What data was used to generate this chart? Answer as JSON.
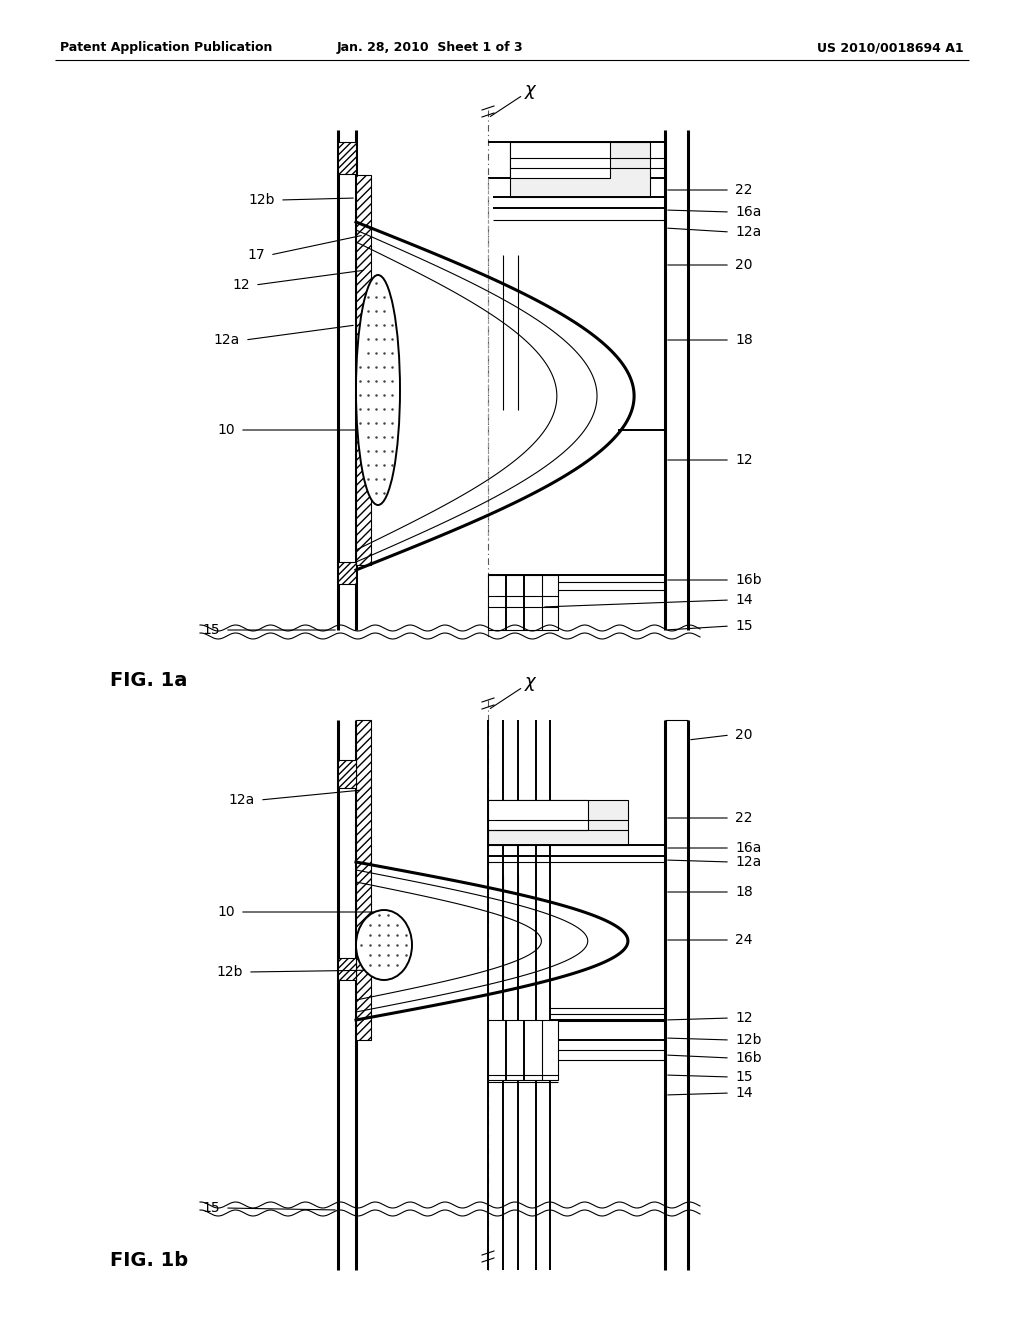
{
  "bg_color": "#ffffff",
  "header_left": "Patent Application Publication",
  "header_center": "Jan. 28, 2010  Sheet 1 of 3",
  "header_right": "US 2010/0018694 A1",
  "fig1a_label": "FIG. 1a",
  "fig1b_label": "FIG. 1b",
  "axis_label": "χ",
  "line_color": "#000000"
}
